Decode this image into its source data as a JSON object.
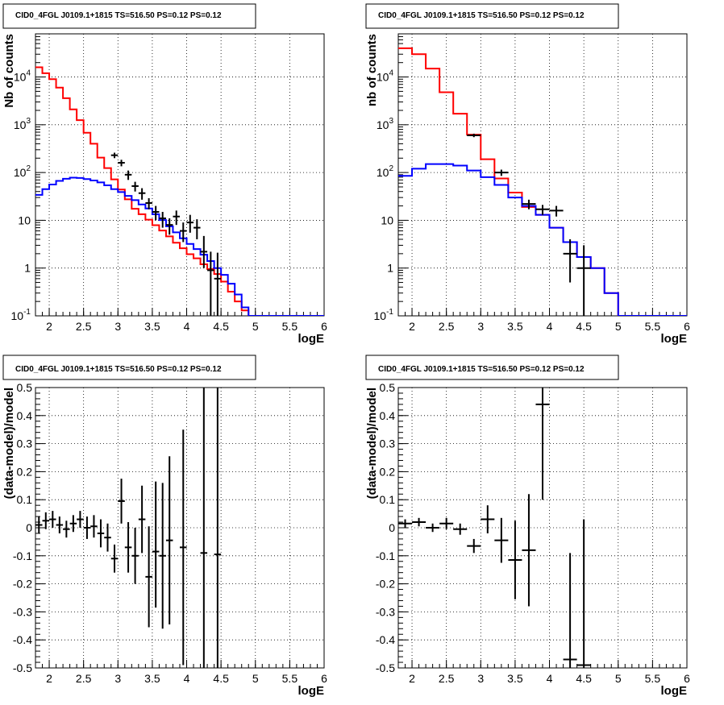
{
  "colors": {
    "data": "#000000",
    "model_total": "#ff0000",
    "model_bkg": "#0000ff",
    "grid": "#000000"
  },
  "chart_data": [
    {
      "type": "line",
      "title": "CID0_4FGL J0109.1+1815 TS=516.50 PS=0.12 PS=0.12",
      "xlabel": "logE",
      "ylabel": "Nb of counts",
      "xlim": [
        1.8,
        6.0
      ],
      "ylim": [
        0.1,
        80000
      ],
      "yscale": "log",
      "grid": true,
      "x_ticks": [
        "2",
        "2.5",
        "3",
        "3.5",
        "4",
        "4.5",
        "5",
        "5.5",
        "6"
      ],
      "y_ticks": [
        {
          "value": 0.1,
          "mantissa": "10",
          "exp": "-1"
        },
        {
          "value": 1,
          "mantissa": "1",
          "exp": ""
        },
        {
          "value": 10,
          "mantissa": "10",
          "exp": ""
        },
        {
          "value": 100,
          "mantissa": "10",
          "exp": "2"
        },
        {
          "value": 1000,
          "mantissa": "10",
          "exp": "3"
        },
        {
          "value": 10000,
          "mantissa": "10",
          "exp": "4"
        }
      ],
      "series": [
        {
          "role": "model_total",
          "kind": "step",
          "edges": [
            1.8,
            1.9,
            2.0,
            2.1,
            2.2,
            2.3,
            2.4,
            2.5,
            2.6,
            2.7,
            2.8,
            2.9,
            3.0,
            3.1,
            3.2,
            3.3,
            3.4,
            3.5,
            3.6,
            3.7,
            3.8,
            3.9,
            4.0,
            4.1,
            4.2,
            4.3,
            4.4,
            4.5,
            4.6,
            4.7,
            4.8,
            4.9,
            5.0,
            5.1,
            5.2,
            5.3,
            5.4,
            5.5,
            5.6,
            5.7,
            5.8,
            5.9,
            6.0
          ],
          "values": [
            16000,
            12000,
            9000,
            6000,
            3600,
            2100,
            1250,
            680,
            400,
            205,
            124,
            72,
            44,
            27.5,
            17.4,
            13.4,
            10.3,
            7.9,
            6.1,
            4.6,
            3.4,
            2.6,
            1.95,
            1.6,
            1.2,
            0.95,
            0.75,
            0.52,
            0.32,
            0.2,
            0.13,
            0.1,
            0.1,
            0.1,
            0.1,
            0.1,
            0.1,
            0.1,
            0.1,
            0.1,
            0.1,
            0.1
          ]
        },
        {
          "role": "model_bkg",
          "kind": "step",
          "edges": [
            1.8,
            1.9,
            2.0,
            2.1,
            2.2,
            2.3,
            2.4,
            2.5,
            2.6,
            2.7,
            2.8,
            2.9,
            3.0,
            3.1,
            3.2,
            3.3,
            3.4,
            3.5,
            3.6,
            3.7,
            3.8,
            3.9,
            4.0,
            4.1,
            4.2,
            4.3,
            4.4,
            4.5,
            4.6,
            4.7,
            4.8,
            4.9,
            5.0,
            5.1,
            5.2,
            5.3,
            5.4,
            5.5,
            5.6,
            5.7,
            5.8,
            5.9,
            6.0
          ],
          "values": [
            34,
            45,
            56,
            67,
            74,
            78,
            77,
            73,
            68,
            62,
            54,
            45,
            39,
            32.5,
            26.5,
            21.5,
            17.7,
            13.4,
            10.1,
            7.5,
            5.6,
            4.2,
            3.2,
            2.5,
            1.9,
            1.4,
            1.0,
            0.72,
            0.47,
            0.28,
            0.15,
            0.1,
            0.1,
            0.1,
            0.1,
            0.1,
            0.1,
            0.1,
            0.1,
            0.1,
            0.1,
            0.1
          ]
        },
        {
          "role": "data",
          "kind": "errorbar",
          "x": [
            2.95,
            3.05,
            3.15,
            3.25,
            3.35,
            3.45,
            3.55,
            3.65,
            3.75,
            3.85,
            3.95,
            4.05,
            4.15,
            4.25,
            4.35,
            4.45
          ],
          "y": [
            230,
            160,
            90,
            52,
            37,
            23,
            15,
            11,
            8,
            12,
            6,
            9,
            7,
            2.2,
            0.9,
            0.6
          ],
          "xerr": 0.05,
          "yerr_lo": [
            30,
            25,
            20,
            12,
            10,
            6,
            5,
            4,
            3,
            4,
            2.5,
            3.5,
            3,
            1.2,
            0.8,
            0.55
          ],
          "yerr_hi": [
            30,
            25,
            20,
            12,
            10,
            6,
            5,
            4,
            3,
            4,
            3,
            4,
            3.5,
            2.5,
            1.3,
            1.5
          ]
        }
      ]
    },
    {
      "type": "line",
      "title": "CID0_4FGL J0109.1+1815 TS=516.50 PS=0.12 PS=0.12",
      "xlabel": "logE",
      "ylabel": "nb of counts",
      "xlim": [
        1.8,
        6.0
      ],
      "ylim": [
        0.1,
        80000
      ],
      "yscale": "log",
      "grid": true,
      "x_ticks": [
        "2",
        "2.5",
        "3",
        "3.5",
        "4",
        "4.5",
        "5",
        "5.5",
        "6"
      ],
      "y_ticks": [
        {
          "value": 0.1,
          "mantissa": "10",
          "exp": "-1"
        },
        {
          "value": 1,
          "mantissa": "1",
          "exp": ""
        },
        {
          "value": 10,
          "mantissa": "10",
          "exp": ""
        },
        {
          "value": 100,
          "mantissa": "10",
          "exp": "2"
        },
        {
          "value": 1000,
          "mantissa": "10",
          "exp": "3"
        },
        {
          "value": 10000,
          "mantissa": "10",
          "exp": "4"
        }
      ],
      "series": [
        {
          "role": "model_total",
          "kind": "step",
          "edges": [
            1.8,
            2.0,
            2.2,
            2.4,
            2.6,
            2.8,
            3.0,
            3.2,
            3.4,
            3.6,
            3.8,
            4.0,
            4.2,
            4.4,
            4.6,
            4.8,
            5.0,
            5.2,
            5.4,
            5.6,
            5.8,
            6.0
          ],
          "values": [
            40000,
            30000,
            15000,
            4800,
            1700,
            620,
            190,
            75,
            38,
            19,
            13,
            7,
            3.5,
            1.7,
            1.0,
            0.3,
            0.1,
            0.1,
            0.1,
            0.1,
            0.1
          ]
        },
        {
          "role": "model_bkg",
          "kind": "step",
          "edges": [
            1.8,
            2.0,
            2.2,
            2.4,
            2.6,
            2.8,
            3.0,
            3.2,
            3.4,
            3.6,
            3.8,
            4.0,
            4.2,
            4.4,
            4.6,
            4.8,
            5.0,
            5.2,
            5.4,
            5.6,
            5.8,
            6.0
          ],
          "values": [
            85,
            120,
            150,
            150,
            140,
            110,
            80,
            55,
            30,
            20,
            13,
            7,
            3.5,
            1.7,
            1.0,
            0.3,
            0.1,
            0.1,
            0.1,
            0.1,
            0.1
          ]
        },
        {
          "role": "data",
          "kind": "errorbar",
          "x": [
            2.9,
            3.3,
            3.7,
            3.9,
            4.1,
            4.3,
            4.5
          ],
          "y": [
            600,
            100,
            22,
            17,
            16,
            2,
            1
          ],
          "xerr": 0.1,
          "yerr_lo": [
            50,
            15,
            5,
            4,
            4,
            1.5,
            1
          ],
          "yerr_hi": [
            50,
            15,
            5,
            4,
            4,
            2,
            2
          ]
        }
      ]
    },
    {
      "type": "scatter",
      "title": "CID0_4FGL J0109.1+1815 TS=516.50 PS=0.12 PS=0.12",
      "xlabel": "logE",
      "ylabel": "(data-model)/model",
      "xlim": [
        1.8,
        6.0
      ],
      "ylim": [
        -0.5,
        0.5
      ],
      "yscale": "linear",
      "grid": true,
      "x_ticks": [
        "2",
        "2.5",
        "3",
        "3.5",
        "4",
        "4.5",
        "5",
        "5.5",
        "6"
      ],
      "y_ticks": [
        "-0.5",
        "-0.4",
        "-0.3",
        "-0.2",
        "-0.1",
        "0",
        "0.1",
        "0.2",
        "0.3",
        "0.4",
        "0.5"
      ],
      "series": [
        {
          "role": "data",
          "kind": "errorbar",
          "x": [
            1.85,
            1.95,
            2.05,
            2.15,
            2.25,
            2.35,
            2.45,
            2.55,
            2.65,
            2.75,
            2.85,
            2.95,
            3.05,
            3.15,
            3.25,
            3.35,
            3.45,
            3.55,
            3.65,
            3.75,
            3.95,
            4.25,
            4.45
          ],
          "y": [
            0.01,
            0.025,
            0.03,
            0.01,
            -0.005,
            0.015,
            0.03,
            0.0,
            0.005,
            -0.02,
            -0.035,
            -0.11,
            0.095,
            -0.07,
            -0.1,
            0.03,
            -0.175,
            -0.085,
            -0.1,
            -0.045,
            -0.07,
            -0.09,
            -0.095
          ],
          "xerr": 0.05,
          "yerr_lo": [
            0.03,
            0.03,
            0.03,
            0.03,
            0.03,
            0.03,
            0.03,
            0.04,
            0.04,
            0.05,
            0.05,
            0.05,
            0.08,
            0.09,
            0.1,
            0.12,
            0.18,
            0.2,
            0.26,
            0.3,
            0.42,
            0.6,
            0.6
          ],
          "yerr_hi": [
            0.03,
            0.03,
            0.03,
            0.03,
            0.03,
            0.03,
            0.03,
            0.04,
            0.04,
            0.05,
            0.05,
            0.05,
            0.08,
            0.09,
            0.1,
            0.12,
            0.18,
            0.25,
            0.26,
            0.3,
            0.42,
            0.6,
            0.6
          ]
        }
      ]
    },
    {
      "type": "scatter",
      "title": "CID0_4FGL J0109.1+1815 TS=516.50 PS=0.12 PS=0.12",
      "xlabel": "logE",
      "ylabel": "(data-model)/model",
      "xlim": [
        1.8,
        6.0
      ],
      "ylim": [
        -0.5,
        0.5
      ],
      "yscale": "linear",
      "grid": true,
      "x_ticks": [
        "2",
        "2.5",
        "3",
        "3.5",
        "4",
        "4.5",
        "5",
        "5.5",
        "6"
      ],
      "y_ticks": [
        "-0.5",
        "-0.4",
        "-0.3",
        "-0.2",
        "-0.1",
        "0",
        "0.1",
        "0.2",
        "0.3",
        "0.4",
        "0.5"
      ],
      "series": [
        {
          "role": "data",
          "kind": "errorbar",
          "x": [
            1.9,
            2.1,
            2.3,
            2.5,
            2.7,
            2.9,
            3.1,
            3.3,
            3.5,
            3.7,
            3.9,
            4.3,
            4.5
          ],
          "y": [
            0.015,
            0.02,
            0.0,
            0.015,
            -0.005,
            -0.065,
            0.03,
            -0.045,
            -0.115,
            -0.08,
            0.44,
            -0.47,
            -0.49
          ],
          "xerr": 0.1,
          "yerr_lo": [
            0.015,
            0.015,
            0.015,
            0.02,
            0.02,
            0.025,
            0.05,
            0.08,
            0.14,
            0.2,
            0.34,
            0.38,
            0.4
          ],
          "yerr_hi": [
            0.015,
            0.015,
            0.015,
            0.02,
            0.02,
            0.025,
            0.05,
            0.08,
            0.14,
            0.2,
            0.34,
            0.38,
            0.52
          ]
        }
      ]
    }
  ]
}
